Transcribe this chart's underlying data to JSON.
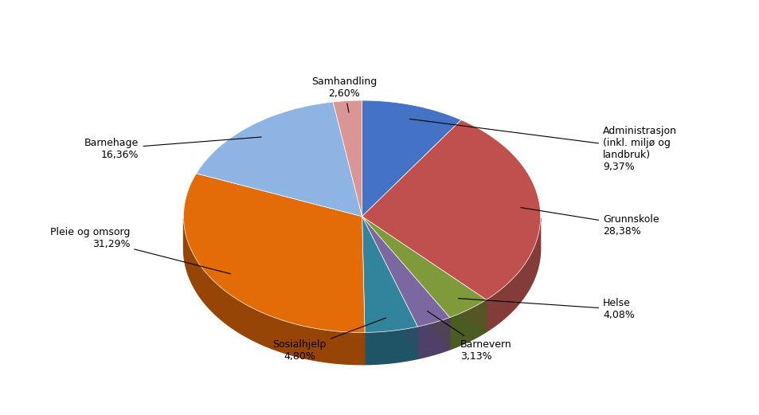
{
  "label_names": [
    "Administrasjon\n(inkl. miljø og\nlandbruk)",
    "Grunnskole",
    "Helse",
    "Barnevern",
    "Sosialhjelp",
    "Pleie og omsorg",
    "Barnehage",
    "Samhandling"
  ],
  "pct_labels": [
    "9,37%",
    "28,38%",
    "4,08%",
    "3,13%",
    "4,80%",
    "31,29%",
    "16,36%",
    "2,60%"
  ],
  "values": [
    9.37,
    28.38,
    4.08,
    3.13,
    4.8,
    31.29,
    16.36,
    2.6
  ],
  "colors": [
    "#4472C4",
    "#C0504D",
    "#7F9A3A",
    "#7B68A0",
    "#31849B",
    "#E36C09",
    "#8EB4E3",
    "#D99694"
  ],
  "dark_colors": [
    "#2E508A",
    "#843C39",
    "#4A5C22",
    "#4E4066",
    "#1F5467",
    "#974506",
    "#5A7DB0",
    "#A06060"
  ],
  "background_color": "#FFFFFF",
  "startangle": 90,
  "figsize": [
    9.54,
    5.21
  ],
  "dpi": 100,
  "fontsize": 9,
  "text_positions": [
    [
      1.35,
      0.38,
      "left"
    ],
    [
      1.35,
      -0.05,
      "left"
    ],
    [
      1.35,
      -0.52,
      "left"
    ],
    [
      0.55,
      -0.75,
      "left"
    ],
    [
      -0.35,
      -0.75,
      "center"
    ],
    [
      -1.3,
      -0.12,
      "right"
    ],
    [
      -1.25,
      0.38,
      "right"
    ],
    [
      -0.1,
      0.72,
      "center"
    ]
  ]
}
